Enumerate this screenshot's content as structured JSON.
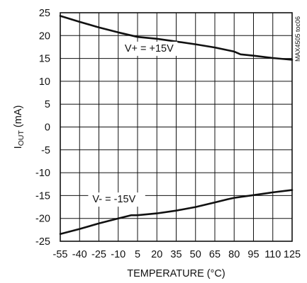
{
  "chart_data": {
    "type": "line",
    "title": "",
    "xlabel": "TEMPERATURE (°C)",
    "ylabel": {
      "main": "I",
      "sub": "OUT",
      "unit": " (mA)"
    },
    "xlim": [
      -55,
      125
    ],
    "ylim": [
      -25,
      25
    ],
    "x_ticks": [
      -55,
      -40,
      -25,
      -10,
      5,
      20,
      35,
      50,
      65,
      80,
      95,
      110,
      125
    ],
    "x_tick_labels": [
      "-55",
      "-40",
      "-25",
      "-10",
      "5",
      "20",
      "35",
      "50",
      "65",
      "80",
      "95",
      "110",
      "125"
    ],
    "y_ticks": [
      25,
      20,
      15,
      10,
      5,
      0,
      -5,
      -10,
      -15,
      -20,
      -25
    ],
    "y_tick_labels": [
      "25",
      "20",
      "15",
      "10",
      "5",
      "0",
      "-5",
      "-10",
      "-15",
      "-20",
      "-25"
    ],
    "grid": true,
    "legend": "none",
    "series": [
      {
        "x": [
          -55,
          -40,
          -25,
          -10,
          5,
          20,
          35,
          50,
          65,
          80,
          85,
          95,
          110,
          125
        ],
        "y": [
          24.3,
          23.0,
          21.8,
          20.7,
          19.7,
          19.3,
          18.7,
          18.1,
          17.4,
          16.5,
          15.9,
          15.6,
          15.1,
          14.7
        ]
      },
      {
        "x": [
          -55,
          -40,
          -25,
          -10,
          0,
          5,
          20,
          35,
          50,
          65,
          75,
          80,
          95,
          110,
          125
        ],
        "y": [
          -23.4,
          -22.3,
          -21.1,
          -20.0,
          -19.3,
          -19.3,
          -18.9,
          -18.3,
          -17.5,
          -16.5,
          -15.8,
          -15.5,
          -14.9,
          -14.3,
          -13.8
        ]
      }
    ],
    "annotations": [
      {
        "text": "V+ = +15V",
        "x": -5,
        "y": 16.5
      },
      {
        "text": "V- = -15V",
        "x": -30,
        "y": -16.5
      }
    ],
    "side_code": "MAX4505 toc06"
  },
  "colors": {
    "line": "#111111",
    "grid": "#111111",
    "background": "#ffffff"
  }
}
